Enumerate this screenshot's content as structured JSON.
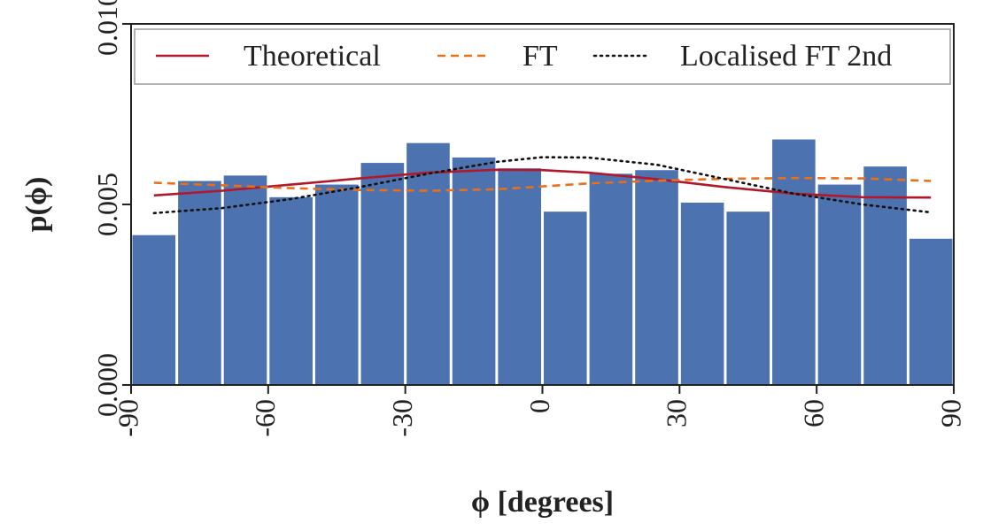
{
  "chart_data": {
    "type": "bar",
    "xlabel": "ϕ [degrees]",
    "ylabel": "p(ϕ)",
    "xlim": [
      -90,
      90
    ],
    "ylim": [
      0,
      0.01
    ],
    "xticks": [
      -90,
      -60,
      -30,
      0,
      30,
      60,
      90
    ],
    "xtick_labels": [
      "-90",
      "-60",
      "-30",
      "0",
      "30",
      "60",
      "90"
    ],
    "yticks": [
      0,
      0.005,
      0.01
    ],
    "ytick_labels": [
      "0.000",
      "0.005",
      "0.010"
    ],
    "grid": false,
    "legend_position": "top",
    "bars": {
      "bin_edges": [
        -90,
        -80,
        -70,
        -60,
        -50,
        -40,
        -30,
        -20,
        -10,
        0,
        10,
        20,
        30,
        40,
        50,
        60,
        70,
        80,
        90
      ],
      "values": [
        0.00415,
        0.00565,
        0.0058,
        0.0052,
        0.00555,
        0.00615,
        0.0067,
        0.0063,
        0.006,
        0.0048,
        0.00585,
        0.00595,
        0.00505,
        0.0048,
        0.0068,
        0.00555,
        0.00605,
        0.00405
      ],
      "color": "#4C72B0"
    },
    "series": [
      {
        "name": "Theoretical",
        "style": "solid",
        "color": "#B2182B",
        "x": [
          -85,
          -70,
          -55,
          -40,
          -25,
          -10,
          0,
          10,
          25,
          40,
          55,
          70,
          85
        ],
        "values": [
          0.00525,
          0.00538,
          0.00555,
          0.00572,
          0.00588,
          0.00596,
          0.00595,
          0.00588,
          0.0057,
          0.00548,
          0.0053,
          0.0052,
          0.00519
        ]
      },
      {
        "name": "FT",
        "style": "dashed",
        "color": "#E8701A",
        "x": [
          -85,
          -70,
          -55,
          -40,
          -25,
          -10,
          0,
          10,
          25,
          40,
          55,
          70,
          85
        ],
        "values": [
          0.0056,
          0.00553,
          0.00545,
          0.0054,
          0.00538,
          0.00542,
          0.0055,
          0.00558,
          0.00566,
          0.00571,
          0.00573,
          0.00572,
          0.00565
        ]
      },
      {
        "name": "Localised FT 2nd",
        "style": "dotted",
        "color": "#111111",
        "x": [
          -85,
          -70,
          -55,
          -40,
          -25,
          -10,
          0,
          10,
          25,
          40,
          55,
          70,
          85
        ],
        "values": [
          0.00476,
          0.0049,
          0.00515,
          0.00548,
          0.00585,
          0.00618,
          0.00631,
          0.0063,
          0.0061,
          0.0057,
          0.0053,
          0.005,
          0.00478
        ]
      }
    ]
  }
}
